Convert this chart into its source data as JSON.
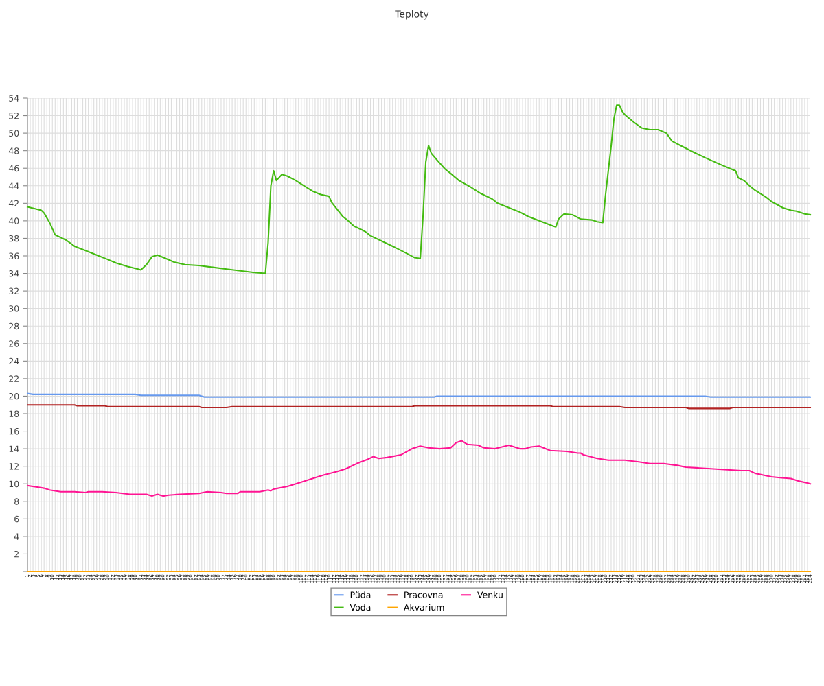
{
  "chart_data": {
    "type": "line",
    "title": "Teploty",
    "xlim": [
      1,
      284
    ],
    "xticks": [
      1,
      2,
      3,
      4,
      5,
      6,
      7,
      8,
      9,
      10,
      11,
      12,
      13,
      14,
      15,
      16,
      17,
      18,
      19,
      20,
      21,
      22,
      23,
      24,
      25,
      26,
      27,
      28,
      29,
      30,
      31,
      32,
      33,
      34,
      35,
      36,
      37,
      38,
      39,
      40,
      41,
      42,
      43,
      44,
      45,
      46,
      47,
      48,
      49,
      50,
      51,
      52,
      53,
      54,
      55,
      56,
      57,
      58,
      59,
      60,
      61,
      62,
      63,
      64,
      65,
      66,
      67,
      68,
      69,
      70,
      71,
      72,
      73,
      74,
      75,
      76,
      77,
      78,
      79,
      80,
      81,
      82,
      83,
      84,
      85,
      86,
      87,
      88,
      89,
      90,
      91,
      92,
      93,
      94,
      95,
      96,
      97,
      98,
      99,
      100,
      101,
      102,
      103,
      104,
      105,
      106,
      107,
      108,
      109,
      110,
      111,
      112,
      113,
      114,
      115,
      116,
      117,
      118,
      119,
      120,
      121,
      122,
      123,
      124,
      125,
      126,
      127,
      128,
      129,
      130,
      131,
      132,
      133,
      134,
      135,
      136,
      137,
      138,
      139,
      140,
      141,
      142,
      143,
      144,
      145,
      146,
      147,
      148,
      149,
      150,
      151,
      152,
      153,
      154,
      155,
      156,
      157,
      158,
      159,
      160,
      161,
      162,
      163,
      164,
      165,
      166,
      167,
      168,
      169,
      170,
      171,
      172,
      173,
      174,
      175,
      176,
      177,
      178,
      179,
      180,
      181,
      182,
      183,
      184,
      185,
      186,
      187,
      188,
      189,
      190,
      191,
      192,
      193,
      194,
      195,
      196,
      197,
      198,
      199,
      200,
      201,
      202,
      203,
      204,
      205,
      206,
      207,
      208,
      209,
      210,
      211,
      212,
      213,
      214,
      215,
      216,
      217,
      218,
      219,
      220,
      221,
      222,
      223,
      224,
      225,
      226,
      227,
      228,
      229,
      230,
      231,
      232,
      233,
      234,
      235,
      236,
      237,
      238,
      239,
      240,
      241,
      242,
      243,
      244,
      245,
      246,
      247,
      248,
      249,
      250,
      251,
      252,
      253,
      254,
      255,
      256,
      257,
      258,
      259,
      260,
      261,
      262,
      263,
      264,
      265,
      266,
      267,
      268,
      269,
      270,
      271,
      272,
      273,
      274,
      275,
      276,
      277,
      278,
      279,
      280,
      281,
      282,
      283,
      284
    ],
    "ylim": [
      0,
      54
    ],
    "yticks": [
      {
        "value": 0,
        "label": null
      },
      2,
      4,
      6,
      8,
      10,
      12,
      14,
      16,
      18,
      20,
      22,
      24,
      26,
      28,
      30,
      32,
      34,
      36,
      38,
      40,
      42,
      44,
      46,
      48,
      50,
      52,
      54
    ],
    "grid": true,
    "legend": "bottom",
    "marker": "none",
    "line_style": "solid",
    "series": [
      {
        "name": "Půda",
        "color": "#6699ee",
        "x": [
          1,
          3,
          40,
          42,
          63,
          65,
          148,
          149,
          246,
          248,
          284
        ],
        "values": [
          20.3,
          20.2,
          20.2,
          20.1,
          20.1,
          19.9,
          19.9,
          20.0,
          20.0,
          19.9,
          19.9
        ]
      },
      {
        "name": "Voda",
        "color": "#44bb11",
        "x": [
          1,
          6,
          7,
          9,
          11,
          15,
          18,
          22,
          26,
          30,
          33,
          37,
          41,
          42,
          44,
          46,
          48,
          51,
          54,
          58,
          63,
          68,
          73,
          78,
          83,
          87,
          88,
          89,
          90,
          91,
          93,
          95,
          98,
          101,
          104,
          107,
          110,
          111,
          113,
          115,
          117,
          119,
          123,
          125,
          129,
          133,
          138,
          141,
          143,
          144,
          145,
          146,
          147,
          150,
          152,
          154,
          157,
          161,
          165,
          169,
          171,
          175,
          179,
          182,
          187,
          191,
          192,
          193,
          195,
          198,
          201,
          205,
          207,
          209,
          210,
          212,
          213,
          214,
          215,
          216,
          217,
          220,
          223,
          226,
          229,
          232,
          234,
          237,
          242,
          246,
          251,
          254,
          257,
          258,
          260,
          262,
          264,
          268,
          270,
          274,
          277,
          279,
          282,
          284
        ],
        "values": [
          41.6,
          41.2,
          40.9,
          39.8,
          38.4,
          37.8,
          37.1,
          36.6,
          36.1,
          35.6,
          35.2,
          34.8,
          34.5,
          34.4,
          35.0,
          35.9,
          36.1,
          35.7,
          35.3,
          35.0,
          34.9,
          34.7,
          34.5,
          34.3,
          34.1,
          34.0,
          37.5,
          44.0,
          45.7,
          44.6,
          45.3,
          45.1,
          44.6,
          44.0,
          43.4,
          43.0,
          42.8,
          42.1,
          41.3,
          40.5,
          40.0,
          39.4,
          38.8,
          38.3,
          37.7,
          37.1,
          36.3,
          35.8,
          35.7,
          40.5,
          46.7,
          48.6,
          47.7,
          46.6,
          45.9,
          45.4,
          44.6,
          43.9,
          43.1,
          42.5,
          42.0,
          41.5,
          41.0,
          40.5,
          39.9,
          39.4,
          39.3,
          40.2,
          40.8,
          40.7,
          40.2,
          40.1,
          39.9,
          39.8,
          43.0,
          48.5,
          51.6,
          53.2,
          53.2,
          52.5,
          52.1,
          51.3,
          50.6,
          50.4,
          50.4,
          50.0,
          49.1,
          48.6,
          47.8,
          47.2,
          46.5,
          46.1,
          45.7,
          44.9,
          44.6,
          44.0,
          43.5,
          42.7,
          42.2,
          41.5,
          41.2,
          41.1,
          40.8,
          40.7
        ]
      },
      {
        "name": "Pracovna",
        "color": "#b22222",
        "x": [
          1,
          18,
          19,
          29,
          30,
          63,
          64,
          73,
          75,
          140,
          141,
          190,
          191,
          215,
          217,
          239,
          240,
          255,
          256,
          284
        ],
        "values": [
          19.0,
          19.0,
          18.9,
          18.9,
          18.8,
          18.8,
          18.7,
          18.7,
          18.8,
          18.8,
          18.9,
          18.9,
          18.8,
          18.8,
          18.7,
          18.7,
          18.6,
          18.6,
          18.7,
          18.7
        ]
      },
      {
        "name": "Akvarium",
        "color": "#ffa500",
        "x": [
          1,
          284
        ],
        "values": [
          0,
          0
        ]
      },
      {
        "name": "Venku",
        "color": "#ff1493",
        "x": [
          1,
          5,
          7,
          9,
          11,
          13,
          18,
          22,
          23,
          28,
          33,
          38,
          44,
          46,
          48,
          50,
          52,
          56,
          63,
          66,
          71,
          73,
          77,
          78,
          85,
          88,
          89,
          90,
          95,
          100,
          105,
          108,
          113,
          116,
          120,
          124,
          126,
          128,
          131,
          136,
          140,
          143,
          146,
          150,
          154,
          156,
          158,
          160,
          164,
          166,
          170,
          175,
          179,
          181,
          183,
          186,
          190,
          196,
          200,
          201,
          202,
          207,
          211,
          217,
          222,
          226,
          231,
          236,
          239,
          244,
          249,
          254,
          259,
          262,
          264,
          267,
          270,
          273,
          277,
          280,
          283,
          284
        ],
        "values": [
          9.8,
          9.6,
          9.5,
          9.3,
          9.2,
          9.1,
          9.1,
          9.0,
          9.1,
          9.1,
          9.0,
          8.8,
          8.8,
          8.6,
          8.8,
          8.6,
          8.7,
          8.8,
          8.9,
          9.1,
          9.0,
          8.9,
          8.9,
          9.1,
          9.1,
          9.3,
          9.2,
          9.4,
          9.7,
          10.2,
          10.7,
          11.0,
          11.4,
          11.7,
          12.3,
          12.8,
          13.1,
          12.9,
          13.0,
          13.3,
          14.0,
          14.3,
          14.1,
          14.0,
          14.1,
          14.7,
          14.9,
          14.5,
          14.4,
          14.1,
          14.0,
          14.4,
          14.0,
          14.0,
          14.2,
          14.3,
          13.8,
          13.7,
          13.5,
          13.5,
          13.3,
          12.9,
          12.7,
          12.7,
          12.5,
          12.3,
          12.3,
          12.1,
          11.9,
          11.8,
          11.7,
          11.6,
          11.5,
          11.5,
          11.2,
          11.0,
          10.8,
          10.7,
          10.6,
          10.3,
          10.1,
          10.0
        ]
      }
    ]
  }
}
